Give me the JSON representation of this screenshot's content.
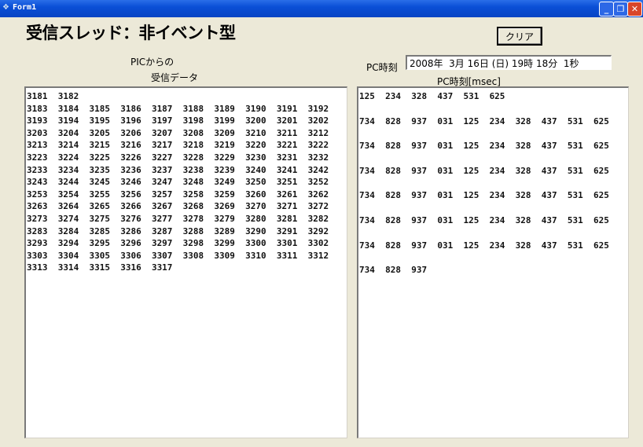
{
  "window": {
    "title": "Form1"
  },
  "heading": "受信スレッド：非イベント型",
  "clear_button": "クリア",
  "received_label_line1": "PICからの",
  "received_label_line2": "受信データ",
  "pc_time_label": "PC時刻",
  "pc_time_value": "2008年  3月 16日 (日) 19時 18分  1秒",
  "msec_label": "PC時刻[msec]",
  "received_data": "3181  3182\n3183  3184  3185  3186  3187  3188  3189  3190  3191  3192\n3193  3194  3195  3196  3197  3198  3199  3200  3201  3202\n3203  3204  3205  3206  3207  3208  3209  3210  3211  3212\n3213  3214  3215  3216  3217  3218  3219  3220  3221  3222\n3223  3224  3225  3226  3227  3228  3229  3230  3231  3232\n3233  3234  3235  3236  3237  3238  3239  3240  3241  3242\n3243  3244  3245  3246  3247  3248  3249  3250  3251  3252\n3253  3254  3255  3256  3257  3258  3259  3260  3261  3262\n3263  3264  3265  3266  3267  3268  3269  3270  3271  3272\n3273  3274  3275  3276  3277  3278  3279  3280  3281  3282\n3283  3284  3285  3286  3287  3288  3289  3290  3291  3292\n3293  3294  3295  3296  3297  3298  3299  3300  3301  3302\n3303  3304  3305  3306  3307  3308  3309  3310  3311  3312\n3313  3314  3315  3316  3317",
  "msec_data": "125  234  328  437  531  625\n\n734  828  937  031  125  234  328  437  531  625\n\n734  828  937  031  125  234  328  437  531  625\n\n734  828  937  031  125  234  328  437  531  625\n\n734  828  937  031  125  234  328  437  531  625\n\n734  828  937  031  125  234  328  437  531  625\n\n734  828  937  031  125  234  328  437  531  625\n\n734  828  937"
}
